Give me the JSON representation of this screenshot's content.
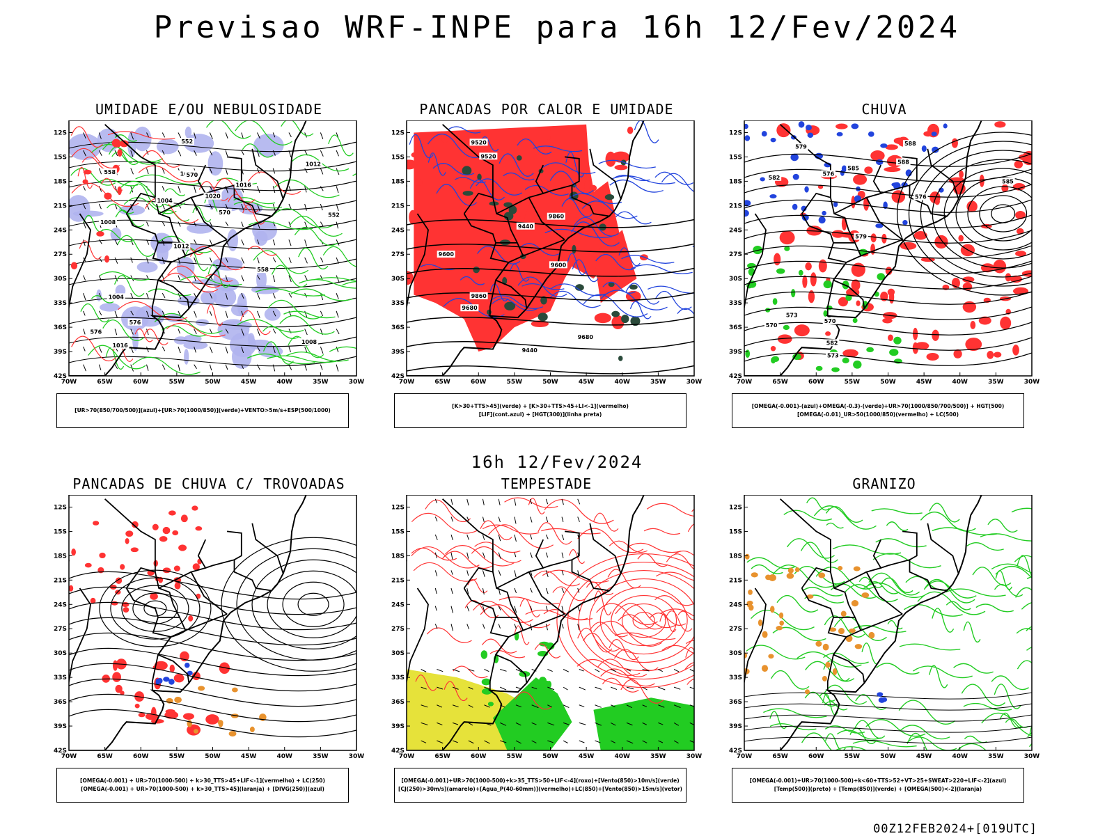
{
  "title": "Previsao WRF-INPE  para 16h 12/Fev/2024",
  "subtitle": "16h 12/Fev/2024",
  "footer": "00Z12FEB2024+[019UTC]",
  "axes": {
    "lat_labels": [
      "12S",
      "15S",
      "18S",
      "21S",
      "24S",
      "27S",
      "30S",
      "33S",
      "36S",
      "39S",
      "42S"
    ],
    "lon_labels": [
      "70W",
      "65W",
      "60W",
      "55W",
      "50W",
      "45W",
      "40W",
      "35W",
      "30W"
    ]
  },
  "colors": {
    "blue": "#2244dd",
    "green": "#22cc22",
    "red": "#ff3333",
    "lavender": "#b0b4ee",
    "yellow": "#e6e23a",
    "orange": "#e8922e",
    "darkgreen": "#2a4a3a"
  },
  "panels": [
    {
      "id": "umidade",
      "title": "UMIDADE E/OU NEBULOSIDADE",
      "legend": [
        "[UR>70(850/700/500)](azul)+[UR>70(1000/850)](verde)+VENTO>5m/s+ESP(500/1000)"
      ],
      "contour_labels": [
        "1008",
        "1012",
        "1016",
        "1020",
        "1004",
        "576",
        "570",
        "558",
        "552"
      ],
      "layers": [
        "lavender",
        "green",
        "red",
        "black-isobars",
        "vectors"
      ]
    },
    {
      "id": "pancadas_calor",
      "title": "PANCADAS POR CALOR E UMIDADE",
      "legend": [
        "[K>30+TTS>45](verde) + [K>30+TTS>45+LI<-1](vermelho)",
        "[LIF](cont.azul) + [HGT(300)](linha preta)"
      ],
      "contour_labels": [
        "9680",
        "9600",
        "9520",
        "9440",
        "9860"
      ],
      "layers": [
        "red",
        "darkgreen",
        "blue-lines",
        "black-lines"
      ]
    },
    {
      "id": "chuva",
      "title": "CHUVA",
      "legend": [
        "[OMEGA(-0.001)-(azul)+OMEGA(-0.3)-(verde)+UR>70(1000/850/700/500)] + HGT(500)",
        "[OMEGA(-0.01)_UR>50(1000/850)(vermelho) + LC(500)"
      ],
      "contour_labels": [
        "588",
        "585",
        "582",
        "579",
        "576",
        "573",
        "570"
      ],
      "layers": [
        "red",
        "blue",
        "green",
        "black-lines"
      ]
    },
    {
      "id": "trovoadas",
      "title": "PANCADAS DE CHUVA C/ TROVOADAS",
      "legend": [
        "[OMEGA(-0.001) + UR>70(1000-500) + k>30_TTS>45+LIF<-1](vermelho) + LC(250)",
        "[OMEGA(-0.001) + UR>70(1000-500) + k>30_TTS>45](laranja) + [DIVG(250)](azul)"
      ],
      "contour_labels": [],
      "layers": [
        "red",
        "orange",
        "blue",
        "streamlines"
      ]
    },
    {
      "id": "tempestade",
      "title": "TEMPESTADE",
      "legend": [
        "[OMEGA(-0.001)+UR>70(1000-500)+k>35_TTS>50+LIF<-4](roxo)+[Vento(850)>10m/s](verde)",
        "[CJ(250)>30m/s](amarelo)+[Agua_P(40-60mm)](vermelho)+LC(850)+[Vento(850)>15m/s](vetor)"
      ],
      "contour_labels": [],
      "layers": [
        "yellow",
        "green",
        "red-lines",
        "vectors"
      ]
    },
    {
      "id": "granizo",
      "title": "GRANIZO",
      "legend": [
        "[OMEGA(-0.001)+UR>70(1000-500)+k<60+TTS>52+VT>25+SWEAT>220+LIF<-2](azul)",
        "[Temp(500)](preto) + [Temp(850)](verde) + [OMEGA(500)<-2](laranja)"
      ],
      "contour_labels": [],
      "layers": [
        "green-lines",
        "black-lines",
        "orange"
      ]
    }
  ]
}
